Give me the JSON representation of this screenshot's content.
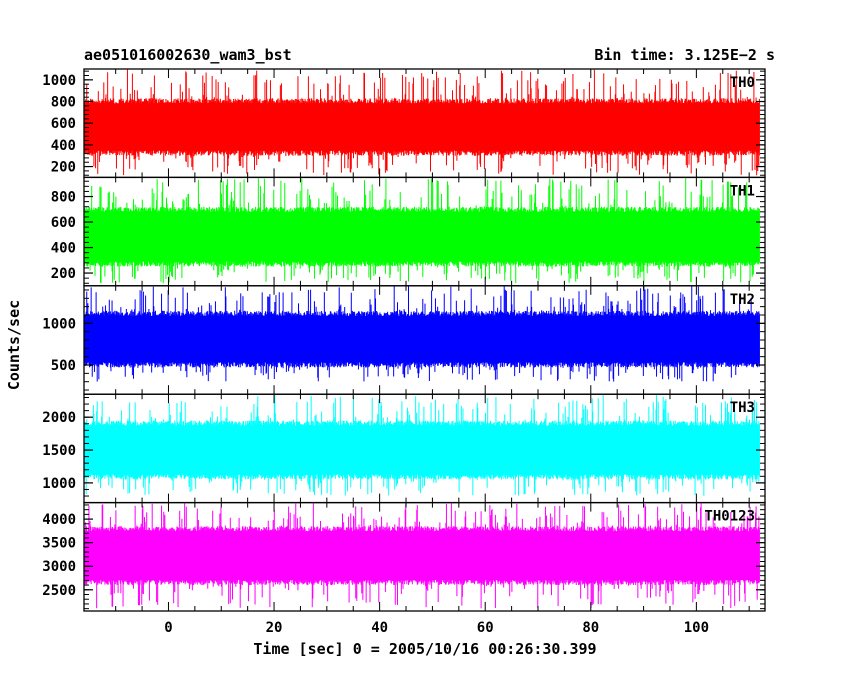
{
  "header": {
    "left_title": "ae051016002630_wam3_bst",
    "right_title": "Bin time: 3.125E−2 s"
  },
  "chart_data": {
    "type": "line",
    "title": "ae051016002630_wam3_bst",
    "subtitle": "Bin time: 3.125E−2 s",
    "xlabel": "Time [sec] 0 = 2005/10/16 00:26:30.399",
    "ylabel": "Counts/sec",
    "xlim": [
      -16,
      113
    ],
    "x_ticks": [
      0,
      20,
      40,
      60,
      80,
      100
    ],
    "x_tick_labels": [
      "0",
      "20",
      "40",
      "60",
      "80",
      "100"
    ],
    "x_range_data": [
      -16,
      112
    ],
    "bin_time": 0.03125,
    "grid": false,
    "panels": [
      {
        "name": "TH0",
        "color": "#ff0000",
        "ylim": [
          100,
          1100
        ],
        "y_ticks": [
          200,
          400,
          600,
          800,
          1000
        ],
        "y_tick_labels": [
          "200",
          "400",
          "600",
          "800",
          "1000"
        ],
        "band_low": 300,
        "band_high": 830,
        "spike_min": 120,
        "spike_max": 1100
      },
      {
        "name": "TH1",
        "color": "#00ff00",
        "ylim": [
          100,
          950
        ],
        "y_ticks": [
          200,
          400,
          600,
          800
        ],
        "y_tick_labels": [
          "200",
          "400",
          "600",
          "800"
        ],
        "band_low": 250,
        "band_high": 720,
        "spike_min": 120,
        "spike_max": 950
      },
      {
        "name": "TH2",
        "color": "#0000ff",
        "ylim": [
          150,
          1450
        ],
        "y_ticks": [
          500,
          1000
        ],
        "y_tick_labels": [
          "500",
          "1000"
        ],
        "band_low": 470,
        "band_high": 1150,
        "spike_min": 300,
        "spike_max": 1450
      },
      {
        "name": "TH3",
        "color": "#00ffff",
        "ylim": [
          700,
          2350
        ],
        "y_ticks": [
          1000,
          1500,
          2000
        ],
        "y_tick_labels": [
          "1000",
          "1500",
          "2000"
        ],
        "band_low": 1050,
        "band_high": 1950,
        "spike_min": 800,
        "spike_max": 2350
      },
      {
        "name": "TH0123",
        "color": "#ff00ff",
        "ylim": [
          2050,
          4350
        ],
        "y_ticks": [
          2500,
          3000,
          3500,
          4000
        ],
        "y_tick_labels": [
          "2500",
          "3000",
          "3500",
          "4000"
        ],
        "band_low": 2600,
        "band_high": 3850,
        "spike_min": 2100,
        "spike_max": 4350
      }
    ]
  }
}
